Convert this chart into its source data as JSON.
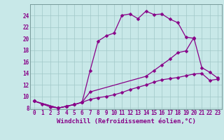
{
  "bg_color": "#c8e8e8",
  "line_color": "#880088",
  "xlim_min": -0.5,
  "xlim_max": 23.5,
  "ylim_min": 7.8,
  "ylim_max": 26.0,
  "xticks": [
    0,
    1,
    2,
    3,
    4,
    5,
    6,
    7,
    8,
    9,
    10,
    11,
    12,
    13,
    14,
    15,
    16,
    17,
    18,
    19,
    20,
    21,
    22,
    23
  ],
  "yticks": [
    8,
    10,
    12,
    14,
    16,
    18,
    20,
    22,
    24
  ],
  "curve1_x": [
    0,
    1,
    2,
    3,
    4,
    5,
    6,
    7,
    8,
    9,
    10,
    11,
    12,
    13,
    14,
    15,
    16,
    17,
    18,
    19,
    20
  ],
  "curve1_y": [
    9.2,
    8.7,
    8.2,
    8.0,
    8.3,
    8.6,
    9.0,
    14.5,
    19.6,
    20.5,
    21.0,
    24.1,
    24.3,
    23.5,
    24.8,
    24.2,
    24.3,
    23.4,
    22.8,
    20.3,
    20.1
  ],
  "curve2_x": [
    0,
    3,
    4,
    5,
    6,
    7,
    14,
    15,
    16,
    17,
    18,
    19,
    20,
    21,
    22,
    23
  ],
  "curve2_y": [
    9.2,
    8.0,
    8.3,
    8.6,
    9.0,
    10.8,
    13.5,
    14.5,
    15.5,
    16.5,
    17.6,
    17.9,
    20.2,
    15.0,
    14.2,
    13.2
  ],
  "curve3_x": [
    0,
    3,
    4,
    5,
    6,
    7,
    8,
    9,
    10,
    11,
    12,
    13,
    14,
    15,
    16,
    17,
    18,
    19,
    20,
    21,
    22,
    23
  ],
  "curve3_y": [
    9.2,
    8.0,
    8.3,
    8.6,
    9.0,
    9.5,
    9.8,
    10.0,
    10.3,
    10.7,
    11.2,
    11.6,
    12.0,
    12.5,
    12.9,
    13.1,
    13.3,
    13.6,
    13.9,
    14.0,
    12.8,
    13.0
  ],
  "xlabel": "Windchill (Refroidissement éolien,°C)",
  "grid_color": "#a0c8c8",
  "marker": "D",
  "markersize": 2.5,
  "linewidth": 0.9,
  "xlabel_fontsize": 6.5,
  "tick_fontsize": 5.5
}
